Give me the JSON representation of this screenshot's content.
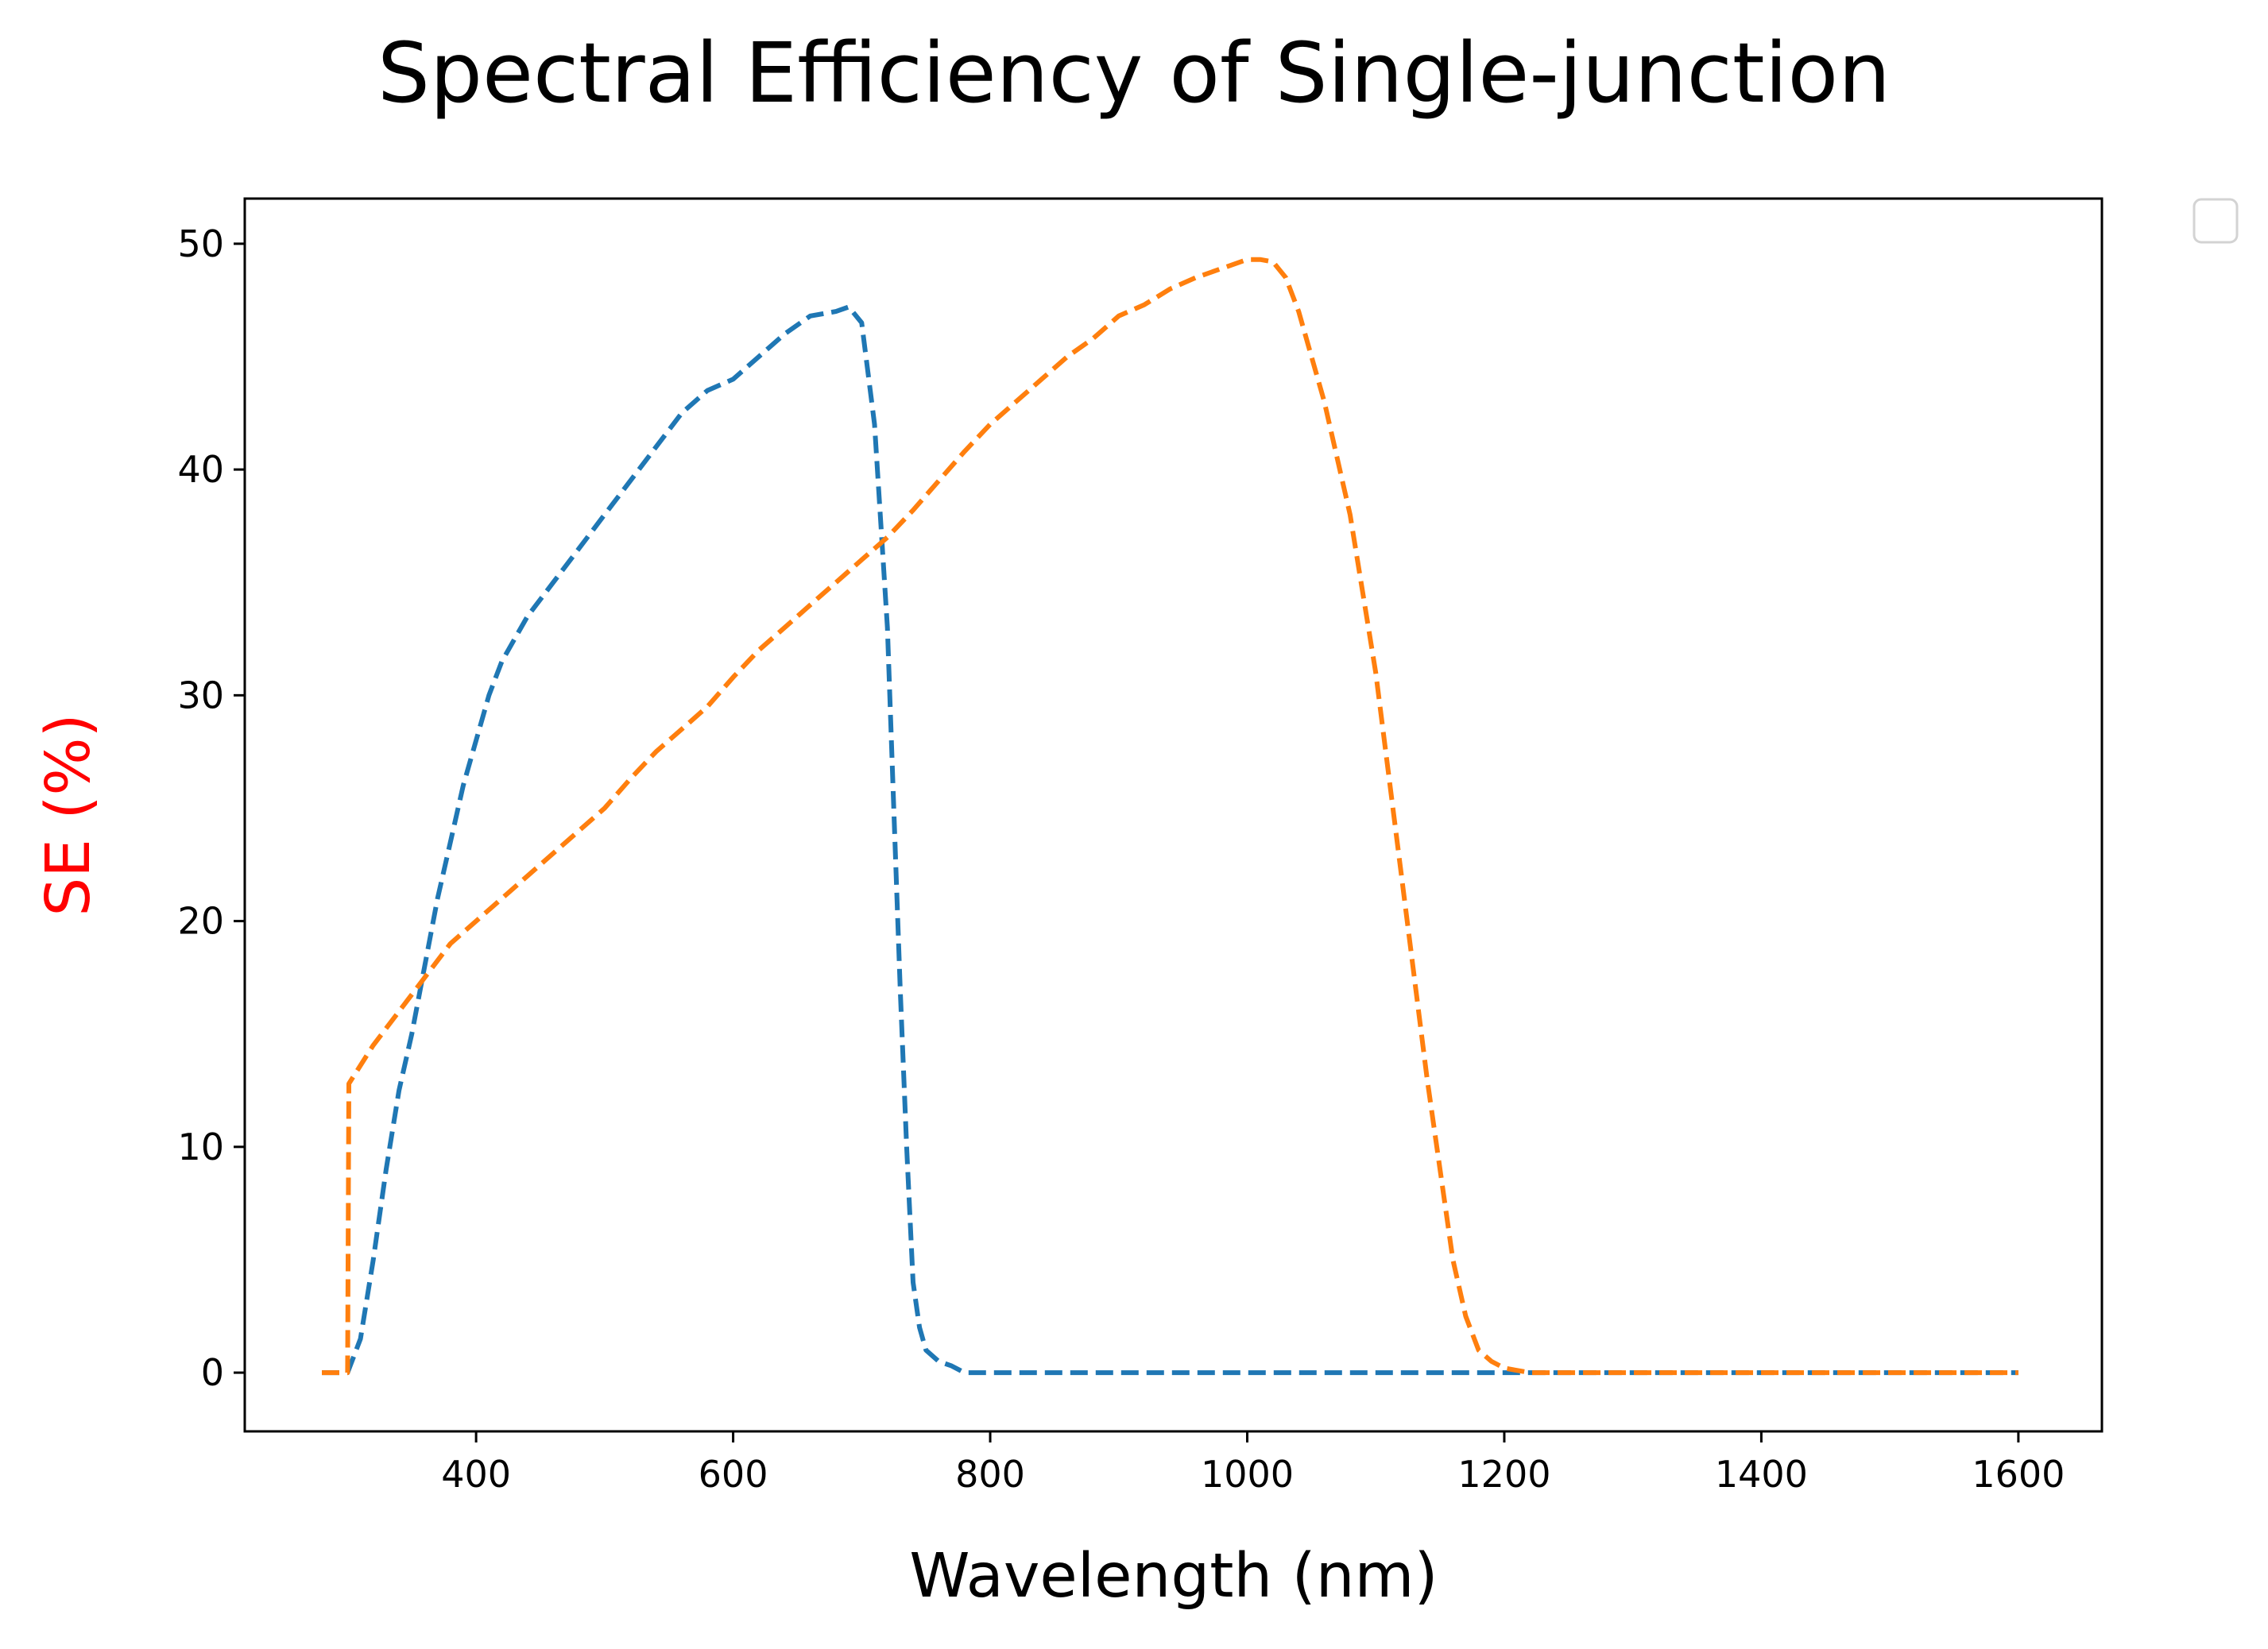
{
  "chart_data": {
    "type": "line",
    "title": "Spectral Efficiency of Single-junction",
    "xlabel": "Wavelength (nm)",
    "ylabel": "SE (%)",
    "ylabel_color": "#ff0000",
    "xlim": [
      220,
      1665
    ],
    "ylim": [
      -2.6,
      52
    ],
    "xticks": [
      400,
      600,
      800,
      1000,
      1200,
      1400,
      1600
    ],
    "yticks": [
      0,
      10,
      20,
      30,
      40,
      50
    ],
    "grid": false,
    "legend": "empty box outside plot, top-right",
    "series": [
      {
        "color": "#1f77b4",
        "style": "dashed",
        "x": [
          280,
          300,
          310,
          320,
          330,
          340,
          350,
          360,
          370,
          380,
          390,
          400,
          410,
          420,
          430,
          440,
          460,
          480,
          500,
          520,
          540,
          560,
          580,
          600,
          620,
          640,
          660,
          680,
          690,
          700,
          710,
          720,
          725,
          730,
          735,
          740,
          745,
          750,
          760,
          770,
          780,
          800,
          1000,
          1200,
          1300,
          1600
        ],
        "y": [
          0,
          0,
          1.5,
          5,
          9,
          12.5,
          15,
          18,
          21,
          23.5,
          26,
          28,
          30,
          31.5,
          32.5,
          33.5,
          35,
          36.5,
          38,
          39.5,
          41,
          42.5,
          43.5,
          44,
          45,
          46,
          46.8,
          47,
          47.2,
          46.5,
          42,
          33,
          25,
          17,
          10,
          4,
          2,
          1,
          0.5,
          0.3,
          0,
          0,
          0,
          0,
          0,
          0
        ]
      },
      {
        "color": "#ff7f0e",
        "style": "dashed",
        "x": [
          280,
          300,
          301,
          320,
          340,
          360,
          380,
          400,
          420,
          440,
          460,
          480,
          500,
          520,
          540,
          560,
          580,
          600,
          620,
          640,
          660,
          680,
          700,
          720,
          740,
          760,
          780,
          800,
          820,
          840,
          860,
          880,
          900,
          920,
          940,
          960,
          980,
          1000,
          1010,
          1020,
          1030,
          1040,
          1060,
          1080,
          1100,
          1120,
          1140,
          1160,
          1170,
          1180,
          1190,
          1200,
          1220,
          1240,
          1260,
          1300,
          1400,
          1600
        ],
        "y": [
          0,
          0,
          12.8,
          14.5,
          16,
          17.5,
          19,
          20,
          21,
          22,
          23,
          24,
          25,
          26.3,
          27.5,
          28.5,
          29.5,
          30.8,
          32,
          33,
          34,
          35,
          36,
          37,
          38.2,
          39.5,
          40.8,
          42,
          43,
          44,
          45,
          45.8,
          46.8,
          47.3,
          48,
          48.5,
          48.9,
          49.3,
          49.3,
          49.2,
          48.5,
          47,
          43,
          38,
          31,
          22,
          13,
          5,
          2.5,
          1,
          0.5,
          0.2,
          0,
          0,
          0,
          0,
          0,
          0
        ]
      }
    ]
  }
}
